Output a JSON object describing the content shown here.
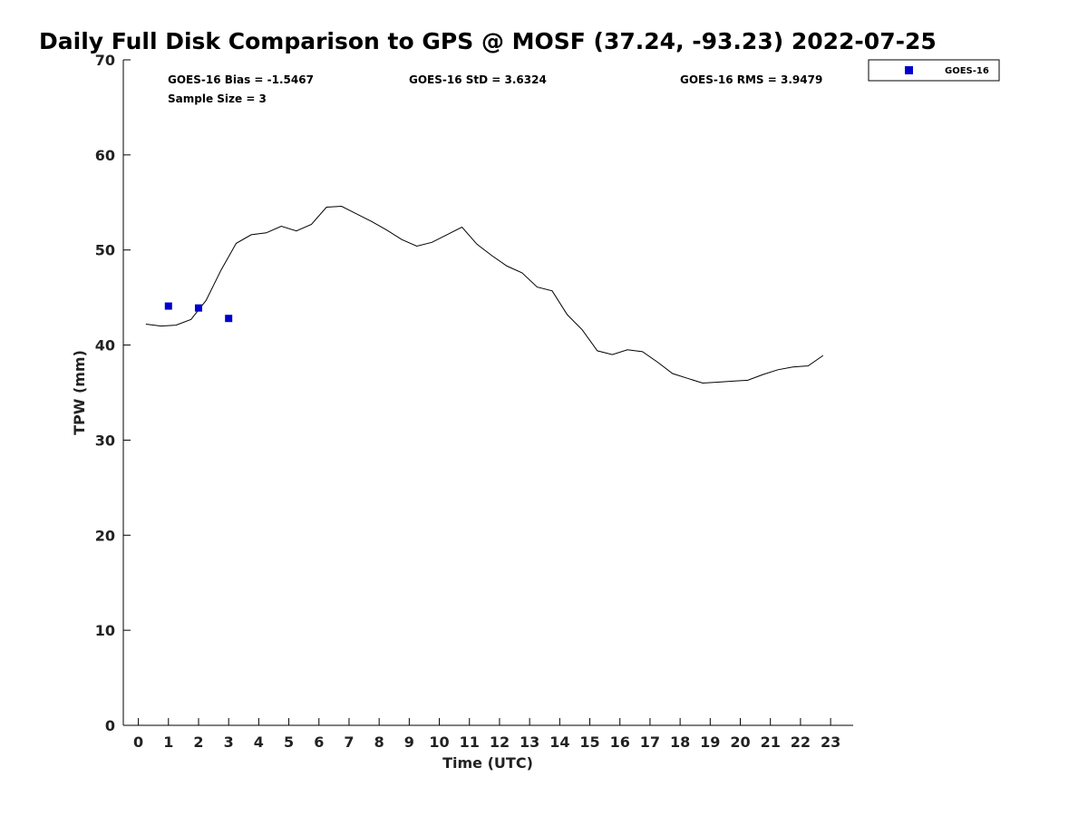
{
  "chart_data": {
    "type": "line",
    "title": "Daily Full Disk Comparison to GPS @ MOSF (37.24, -93.23) 2022-07-25",
    "xlabel": "Time (UTC)",
    "ylabel": "TPW (mm)",
    "xlim": [
      -0.5,
      23.75
    ],
    "ylim": [
      0,
      70
    ],
    "xticks": [
      0,
      1,
      2,
      3,
      4,
      5,
      6,
      7,
      8,
      9,
      10,
      11,
      12,
      13,
      14,
      15,
      16,
      17,
      18,
      19,
      20,
      21,
      22,
      23
    ],
    "yticks": [
      0,
      10,
      20,
      30,
      40,
      50,
      60,
      70
    ],
    "grid": false,
    "legend_position": "top-right, outside",
    "stats": {
      "bias": "GOES-16 Bias = -1.5467",
      "std": "GOES-16 StD = 3.6324",
      "rms": "GOES-16 RMS = 3.9479",
      "sample_size": "Sample Size = 3"
    },
    "series": [
      {
        "kind": "line",
        "color": "#000000",
        "x": [
          0.25,
          0.75,
          1.25,
          1.75,
          2.25,
          2.75,
          3.25,
          3.75,
          4.25,
          4.75,
          5.25,
          5.75,
          6.25,
          6.75,
          7.25,
          7.75,
          8.25,
          8.75,
          9.25,
          9.75,
          10.25,
          10.75,
          11.25,
          11.75,
          12.25,
          12.75,
          13.25,
          13.75,
          14.25,
          14.75,
          15.25,
          15.75,
          16.25,
          16.75,
          17.25,
          17.75,
          18.25,
          18.75,
          19.25,
          19.75,
          20.25,
          20.75,
          21.25,
          21.75,
          22.25,
          22.75
        ],
        "y": [
          42.2,
          42.0,
          42.1,
          42.7,
          44.7,
          47.9,
          50.7,
          51.6,
          51.8,
          52.5,
          52.0,
          52.7,
          54.5,
          54.6,
          53.8,
          53.0,
          52.1,
          51.1,
          50.4,
          50.8,
          51.6,
          52.4,
          50.6,
          49.4,
          48.3,
          47.6,
          46.1,
          45.7,
          43.2,
          41.6,
          39.4,
          39.0,
          39.5,
          39.3,
          38.2,
          37.0,
          36.5,
          36.0,
          36.1,
          36.2,
          36.3,
          36.9,
          37.4,
          37.7,
          37.8,
          38.9
        ]
      },
      {
        "name": "GOES-16",
        "kind": "scatter",
        "color": "#0000cc",
        "marker": "square",
        "x": [
          1.0,
          2.0,
          3.0
        ],
        "y": [
          44.1,
          43.9,
          42.8
        ]
      }
    ]
  }
}
